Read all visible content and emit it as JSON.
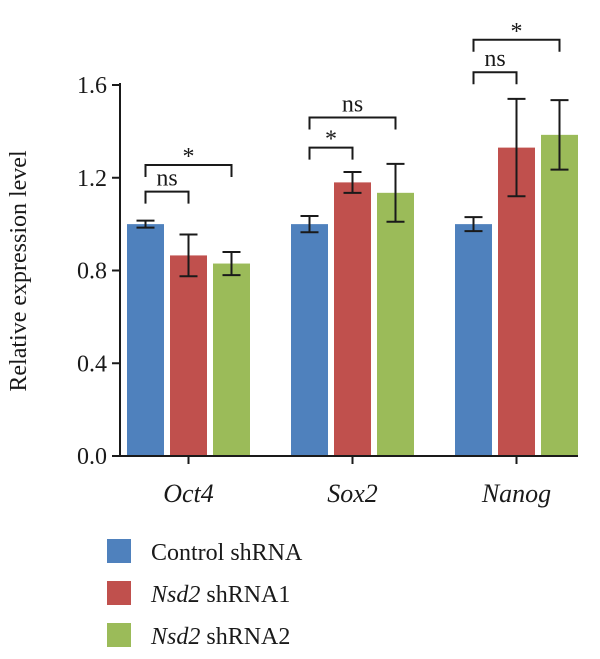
{
  "chart_data": {
    "type": "bar",
    "ylabel": "Relative expression level",
    "ylim": [
      0,
      1.6
    ],
    "yticks": [
      "0.0",
      "0.4",
      "0.8",
      "1.2",
      "1.6"
    ],
    "categories": [
      "Oct4",
      "Sox2",
      "Nanog"
    ],
    "series": [
      {
        "name": "Control shRNA",
        "name_italic": "",
        "name_rest": "Control shRNA",
        "color": "#4f81bd",
        "values": [
          1.0,
          1.0,
          1.0
        ],
        "errors": [
          0.015,
          0.035,
          0.03
        ]
      },
      {
        "name": "Nsd2 shRNA1",
        "name_italic": "Nsd2",
        "name_rest": " shRNA1",
        "color": "#c0504d",
        "values": [
          0.865,
          1.18,
          1.33
        ],
        "errors": [
          0.09,
          0.045,
          0.21
        ]
      },
      {
        "name": "Nsd2 shRNA2",
        "name_italic": "Nsd2",
        "name_rest": " shRNA2",
        "color": "#9bbb59",
        "values": [
          0.83,
          1.135,
          1.385
        ],
        "errors": [
          0.05,
          0.125,
          0.15
        ]
      }
    ],
    "significance": [
      {
        "category": 0,
        "from": 0,
        "to": 1,
        "label": "ns",
        "y": 1.14
      },
      {
        "category": 0,
        "from": 0,
        "to": 2,
        "label": "*",
        "y": 1.255
      },
      {
        "category": 1,
        "from": 0,
        "to": 1,
        "label": "*",
        "y": 1.33
      },
      {
        "category": 1,
        "from": 0,
        "to": 2,
        "label": "ns",
        "y": 1.46
      },
      {
        "category": 2,
        "from": 0,
        "to": 1,
        "label": "ns",
        "y": 1.655
      },
      {
        "category": 2,
        "from": 0,
        "to": 2,
        "label": "*",
        "y": 1.795
      }
    ],
    "legend_position": "bottom-left",
    "grid": false
  }
}
